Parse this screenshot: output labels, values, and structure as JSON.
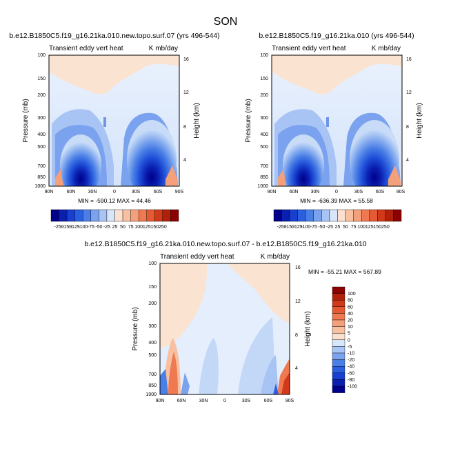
{
  "figure_title": "SON",
  "colors": {
    "blue_scale": [
      "#00008b",
      "#0a1fb0",
      "#1740d0",
      "#2a5fe0",
      "#4a7fe6",
      "#7aa2ee",
      "#a8c4f5",
      "#d7e6fb"
    ],
    "red_scale": [
      "#fbe0cf",
      "#f8c0a0",
      "#f4a07a",
      "#ef7a52",
      "#e55a32",
      "#d03a1a",
      "#b3200a",
      "#8b0000"
    ]
  },
  "chart_data": [
    {
      "type": "heatmap",
      "title": "b.e12.B1850C5.f19_g16.21ka.010.new.topo.surf.07 (yrs 496-544)",
      "subtitle_left": "Transient eddy vert heat",
      "subtitle_right": "K mb/day",
      "ylabel": "Pressure (mb)",
      "ylabel_right": "Height (km)",
      "x_ticks": [
        "90N",
        "60N",
        "30N",
        "0",
        "30S",
        "60S",
        "90S"
      ],
      "y_ticks": [
        "100",
        "150",
        "200",
        "300",
        "400",
        "500",
        "700",
        "850",
        "1000"
      ],
      "y_ticks_right": [
        "16",
        "12",
        "8",
        "4"
      ],
      "stats": "MIN = -590.12   MAX = 44.46",
      "colorbar_labels": [
        "-250",
        "-150",
        "-125",
        "-100",
        "-75",
        "-50",
        "-25",
        "25",
        "50",
        "75",
        "100",
        "125",
        "150",
        "250"
      ],
      "min": -590.12,
      "max": 44.46
    },
    {
      "type": "heatmap",
      "title": "b.e12.B1850C5.f19_g16.21ka.010 (yrs 496-544)",
      "subtitle_left": "Transient eddy vert heat",
      "subtitle_right": "K mb/day",
      "ylabel": "Pressure (mb)",
      "ylabel_right": "Height (km)",
      "x_ticks": [
        "90N",
        "60N",
        "30N",
        "0",
        "30S",
        "60S",
        "90S"
      ],
      "y_ticks": [
        "100",
        "150",
        "200",
        "300",
        "400",
        "500",
        "700",
        "850",
        "1000"
      ],
      "y_ticks_right": [
        "16",
        "12",
        "8",
        "4"
      ],
      "stats": "MIN = -636.39   MAX = 55.58",
      "colorbar_labels": [
        "-250",
        "-150",
        "-125",
        "-100",
        "-75",
        "-50",
        "-25",
        "25",
        "50",
        "75",
        "100",
        "125",
        "150",
        "250"
      ],
      "min": -636.39,
      "max": 55.58
    },
    {
      "type": "heatmap",
      "title": "b.e12.B1850C5.f19_g16.21ka.010.new.topo.surf.07 - b.e12.B1850C5.f19_g16.21ka.010",
      "subtitle_left": "Transient eddy vert heat",
      "subtitle_right": "K mb/day",
      "ylabel": "Pressure (mb)",
      "ylabel_right": "Height (km)",
      "x_ticks": [
        "90N",
        "60N",
        "30N",
        "0",
        "30S",
        "60S",
        "90S"
      ],
      "y_ticks": [
        "100",
        "150",
        "200",
        "300",
        "400",
        "500",
        "700",
        "850",
        "1000"
      ],
      "y_ticks_right": [
        "16",
        "12",
        "8",
        "4"
      ],
      "stats": "MIN = -55.21   MAX = 567.89",
      "colorbar_labels": [
        "100",
        "80",
        "60",
        "40",
        "20",
        "10",
        "5",
        "0",
        "-5",
        "-10",
        "-20",
        "-40",
        "-60",
        "-80",
        "-100"
      ],
      "min": -55.21,
      "max": 567.89
    }
  ]
}
